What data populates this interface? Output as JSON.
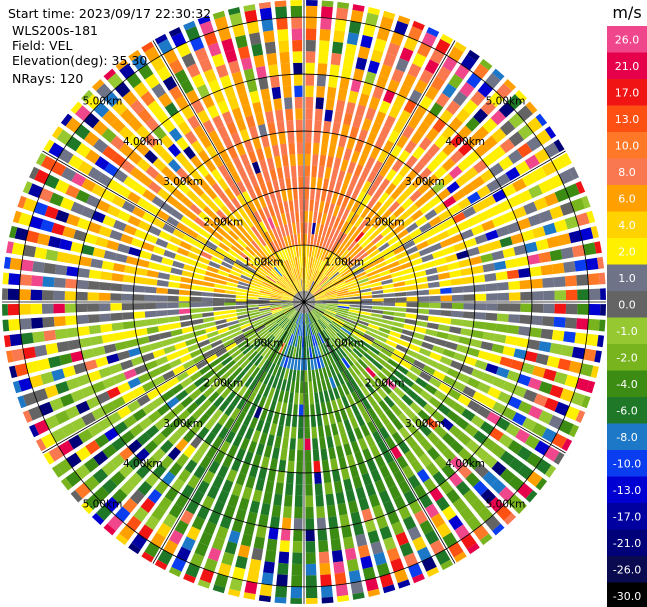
{
  "header": {
    "start_time": "Start time: 2023/09/17 22:30:32",
    "instrument": "WLS200s-181",
    "field": "Field: VEL",
    "elevation": "Elevation(deg): 35.30",
    "nrays": "NRays: 120"
  },
  "colorbar": {
    "unit": "m/s",
    "levels": [
      {
        "label": "26.0",
        "color": "#f0468c"
      },
      {
        "label": "21.0",
        "color": "#e6004b"
      },
      {
        "label": "17.0",
        "color": "#f01414"
      },
      {
        "label": "13.0",
        "color": "#ff5014"
      },
      {
        "label": "10.0",
        "color": "#ff7828"
      },
      {
        "label": "8.0",
        "color": "#fa7850"
      },
      {
        "label": "6.0",
        "color": "#ffa000"
      },
      {
        "label": "4.0",
        "color": "#ffd200"
      },
      {
        "label": "2.0",
        "color": "#fff000"
      },
      {
        "label": "1.0",
        "color": "#6e7387"
      },
      {
        "label": "0.0",
        "color": "#646464"
      },
      {
        "label": "-1.0",
        "color": "#96c832"
      },
      {
        "label": "-2.0",
        "color": "#78b41e"
      },
      {
        "label": "-4.0",
        "color": "#3c8c14"
      },
      {
        "label": "-6.0",
        "color": "#1e7828"
      },
      {
        "label": "-8.0",
        "color": "#1e78c8"
      },
      {
        "label": "-10.0",
        "color": "#0a3cf0"
      },
      {
        "label": "-13.0",
        "color": "#0000d2"
      },
      {
        "label": "-17.0",
        "color": "#0000a0"
      },
      {
        "label": "-21.0",
        "color": "#000078"
      },
      {
        "label": "-26.0",
        "color": "#0a0a50"
      },
      {
        "label": "-30.0",
        "color": "#000000"
      }
    ]
  },
  "chart_data": {
    "type": "heatmap",
    "projection": "polar-ppi",
    "field": "VEL",
    "units": "m/s",
    "nrays": 120,
    "range_rings_km": [
      1.0,
      2.0,
      3.0,
      4.0,
      5.0
    ],
    "ring_labels": [
      "1.00km",
      "2.00km",
      "3.00km",
      "4.00km",
      "5.00km"
    ],
    "max_range_km": 5.3,
    "spokes_deg": [
      0,
      30,
      60,
      90,
      120,
      150,
      180,
      210,
      240,
      270,
      300,
      330
    ],
    "pattern": "north (upper) sector positive velocities 2-10 m/s (yellow/orange/salmon); south (lower) sector negative velocities -2 to -8 m/s (green), small blue patch -8 to -10 m/s just south of center; near-zero grey band along east-west axis; outer ranges noisy"
  }
}
